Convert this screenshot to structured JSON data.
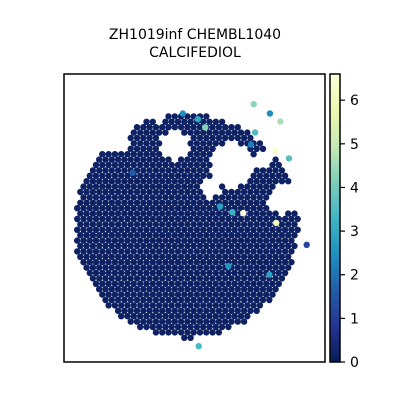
{
  "chart_data": {
    "type": "scatter",
    "title_lines": [
      "ZH1019inf CHEMBL1040",
      "CALCIFEDIOL"
    ],
    "colorbar": {
      "cmap": "YlGnBu",
      "min": 0,
      "max": 6.6,
      "ticks": [
        0,
        1,
        2,
        3,
        4,
        5,
        6
      ],
      "stops": [
        "#081d58",
        "#253494",
        "#225ea8",
        "#1d91c0",
        "#41b6c4",
        "#7fcdbb",
        "#c7e9b4",
        "#edf8b1",
        "#ffffd9"
      ]
    },
    "axes": {
      "x_ticks": false,
      "y_ticks": false,
      "frame": true
    },
    "background_value": 0.15,
    "highlighted_spots": [
      {
        "x": 0.513,
        "y": 0.157,
        "value": 3.0
      },
      {
        "x": 0.455,
        "y": 0.137,
        "value": 2.5
      },
      {
        "x": 0.541,
        "y": 0.185,
        "value": 4.2
      },
      {
        "x": 0.727,
        "y": 0.105,
        "value": 4.3
      },
      {
        "x": 0.732,
        "y": 0.203,
        "value": 3.5
      },
      {
        "x": 0.789,
        "y": 0.137,
        "value": 2.4
      },
      {
        "x": 0.829,
        "y": 0.165,
        "value": 4.6
      },
      {
        "x": 0.81,
        "y": 0.267,
        "value": 6.3
      },
      {
        "x": 0.862,
        "y": 0.293,
        "value": 3.6
      },
      {
        "x": 0.716,
        "y": 0.245,
        "value": 2.2
      },
      {
        "x": 0.687,
        "y": 0.483,
        "value": 6.6
      },
      {
        "x": 0.813,
        "y": 0.517,
        "value": 6.0
      },
      {
        "x": 0.598,
        "y": 0.46,
        "value": 2.8
      },
      {
        "x": 0.645,
        "y": 0.48,
        "value": 3.2
      },
      {
        "x": 0.63,
        "y": 0.667,
        "value": 2.6
      },
      {
        "x": 0.787,
        "y": 0.697,
        "value": 2.8
      },
      {
        "x": 0.516,
        "y": 0.945,
        "value": 3.4
      },
      {
        "x": 0.93,
        "y": 0.593,
        "value": 1.2
      },
      {
        "x": 0.263,
        "y": 0.343,
        "value": 1.6
      }
    ]
  }
}
